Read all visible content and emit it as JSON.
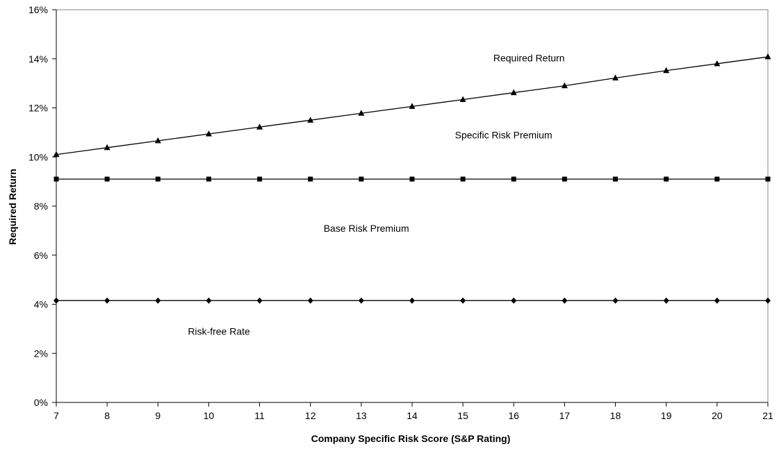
{
  "chart_data": {
    "type": "line",
    "title": "",
    "xlabel": "Company Specific Risk Score (S&P Rating)",
    "ylabel": "Required Return",
    "x": [
      7,
      8,
      9,
      10,
      11,
      12,
      13,
      14,
      15,
      16,
      17,
      18,
      19,
      20,
      21
    ],
    "xlim": [
      7,
      21
    ],
    "ylim": [
      0,
      16
    ],
    "y_ticks": [
      0,
      2,
      4,
      6,
      8,
      10,
      12,
      14,
      16
    ],
    "y_tick_labels": [
      "0%",
      "2%",
      "4%",
      "6%",
      "8%",
      "10%",
      "12%",
      "14%",
      "16%"
    ],
    "x_tick_labels": [
      "7",
      "8",
      "9",
      "10",
      "11",
      "12",
      "13",
      "14",
      "15",
      "16",
      "17",
      "18",
      "19",
      "20",
      "21"
    ],
    "grid": false,
    "legend": "none",
    "series": [
      {
        "marker": "triangle",
        "values": [
          10.1,
          10.38,
          10.66,
          10.94,
          11.22,
          11.5,
          11.78,
          12.06,
          12.34,
          12.62,
          12.9,
          13.22,
          13.52,
          13.8,
          14.08
        ]
      },
      {
        "marker": "square",
        "values": [
          9.1,
          9.1,
          9.1,
          9.1,
          9.1,
          9.1,
          9.1,
          9.1,
          9.1,
          9.1,
          9.1,
          9.1,
          9.1,
          9.1,
          9.1
        ]
      },
      {
        "marker": "diamond",
        "values": [
          4.15,
          4.15,
          4.15,
          4.15,
          4.15,
          4.15,
          4.15,
          4.15,
          4.15,
          4.15,
          4.15,
          4.15,
          4.15,
          4.15,
          4.15
        ]
      }
    ],
    "annotations": [
      {
        "text": "Required Return",
        "x": 16.3,
        "y": 13.9
      },
      {
        "text": "Specific Risk Premium",
        "x": 15.8,
        "y": 10.75
      },
      {
        "text": "Base Risk Premium",
        "x": 13.1,
        "y": 6.95
      },
      {
        "text": "Risk-free Rate",
        "x": 10.2,
        "y": 2.75
      }
    ],
    "colors": {
      "line": "#000000",
      "axis": "#808080"
    }
  }
}
